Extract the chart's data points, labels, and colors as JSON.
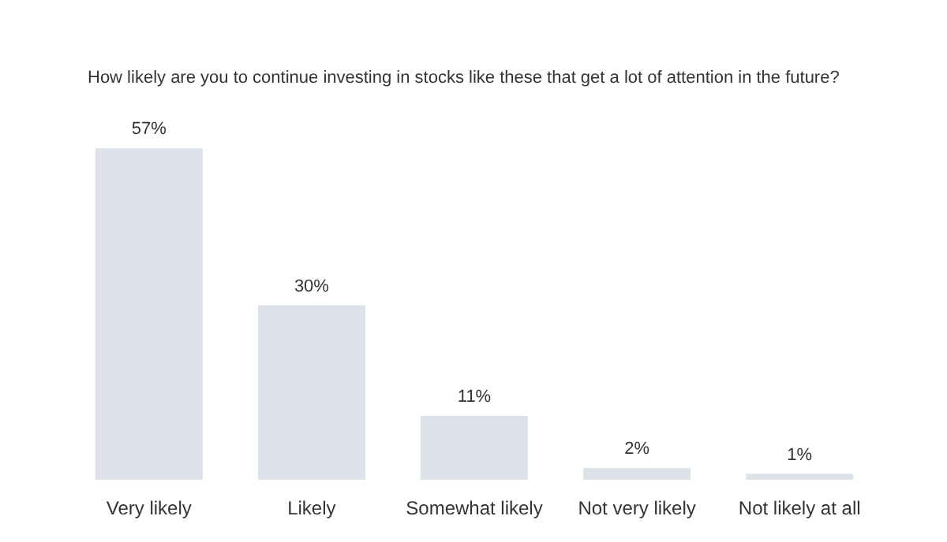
{
  "chart_data": {
    "type": "bar",
    "title": "How likely are you to continue investing in stocks like these that get a lot of attention in the future?",
    "categories": [
      "Very likely",
      "Likely",
      "Somewhat likely",
      "Not very likely",
      "Not likely at all"
    ],
    "values": [
      57,
      30,
      11,
      2,
      1
    ],
    "value_labels": [
      "57%",
      "30%",
      "11%",
      "2%",
      "1%"
    ],
    "color": "#dde2ea",
    "grid": false
  }
}
